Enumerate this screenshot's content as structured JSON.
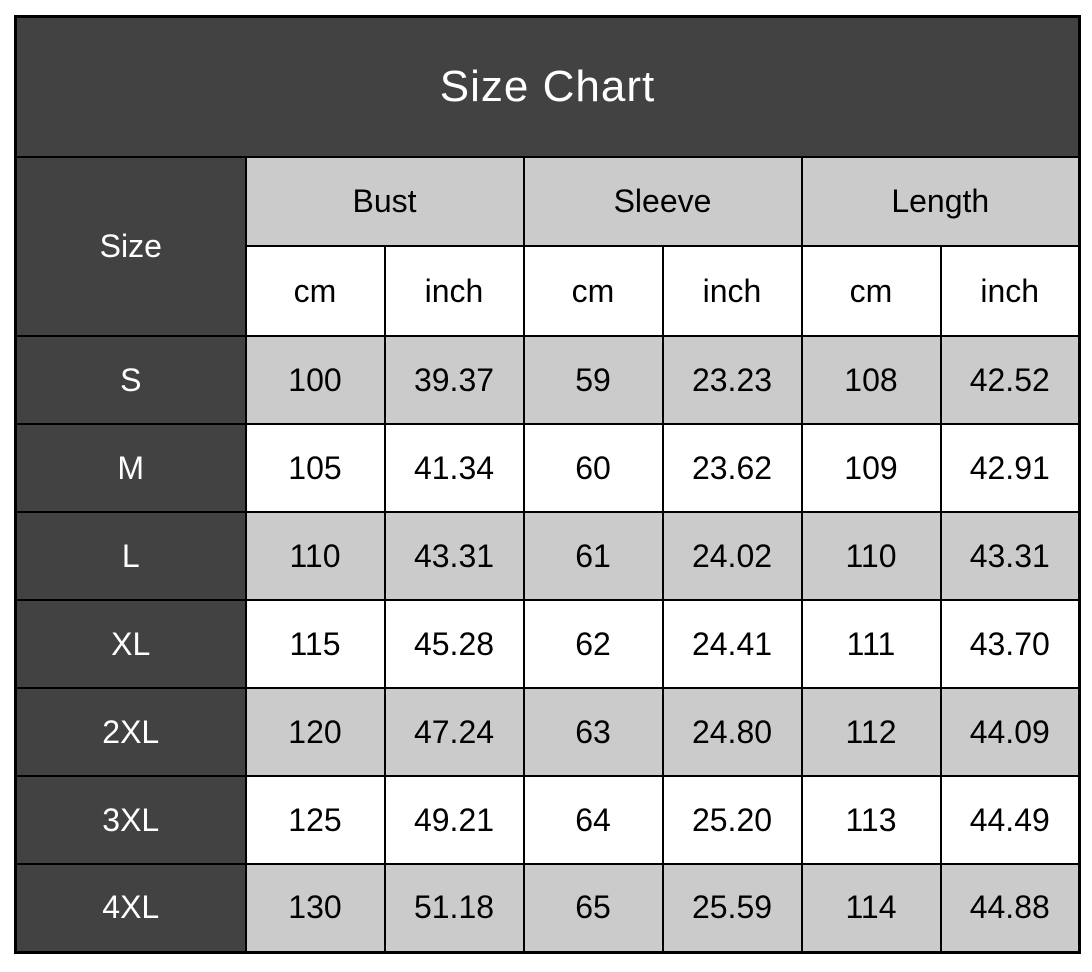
{
  "chart_data": {
    "type": "table",
    "title": "Size Chart",
    "corner_header": "Size",
    "group_headers": [
      "Bust",
      "Sleeve",
      "Length"
    ],
    "unit_headers": [
      "cm",
      "inch",
      "cm",
      "inch",
      "cm",
      "inch"
    ],
    "columns": [
      "Size",
      "Bust cm",
      "Bust inch",
      "Sleeve cm",
      "Sleeve inch",
      "Length cm",
      "Length inch"
    ],
    "rows": [
      {
        "size": "S",
        "values": [
          "100",
          "39.37",
          "59",
          "23.23",
          "108",
          "42.52"
        ]
      },
      {
        "size": "M",
        "values": [
          "105",
          "41.34",
          "60",
          "23.62",
          "109",
          "42.91"
        ]
      },
      {
        "size": "L",
        "values": [
          "110",
          "43.31",
          "61",
          "24.02",
          "110",
          "43.31"
        ]
      },
      {
        "size": "XL",
        "values": [
          "115",
          "45.28",
          "62",
          "24.41",
          "111",
          "43.70"
        ]
      },
      {
        "size": "2XL",
        "values": [
          "120",
          "47.24",
          "63",
          "24.80",
          "112",
          "44.09"
        ]
      },
      {
        "size": "3XL",
        "values": [
          "125",
          "49.21",
          "64",
          "25.20",
          "113",
          "44.49"
        ]
      },
      {
        "size": "4XL",
        "values": [
          "130",
          "51.18",
          "65",
          "25.59",
          "114",
          "44.88"
        ]
      }
    ],
    "layout": {
      "striped_row_sizes": [
        "S",
        "L",
        "2XL",
        "4XL"
      ],
      "legend": "none",
      "grid": "on"
    }
  },
  "colors": {
    "header_dark": "#424242",
    "stripe_gray": "#cbcbcb",
    "row_white": "#ffffff",
    "border_black": "#000000",
    "title_text": "#ffffff",
    "cell_text": "#000000"
  }
}
